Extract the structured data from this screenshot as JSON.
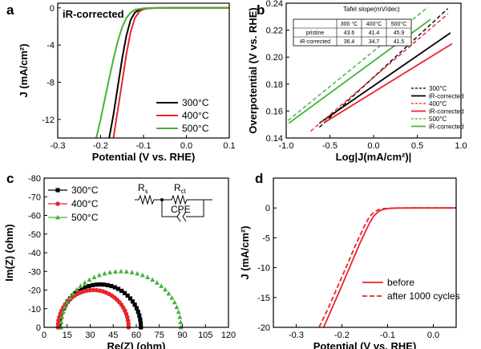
{
  "chart_data": [
    {
      "panel": "a",
      "type": "line",
      "annotation": "iR-corrected",
      "xlabel": "Potential (V vs. RHE)",
      "ylabel": "J (mA/cm²)",
      "xlim": [
        -0.3,
        0.1
      ],
      "ylim": [
        -14,
        0.5
      ],
      "xticks": [
        -0.3,
        -0.2,
        -0.1,
        0.0,
        0.1
      ],
      "xtick_labels": [
        "-0.3",
        "-0.2",
        "-0.1",
        "0.0",
        "0.1"
      ],
      "yticks": [
        0,
        -4,
        -8,
        -12
      ],
      "ytick_labels": [
        "0",
        "-4",
        "-8",
        "-12"
      ],
      "legend_position": "bottom-right",
      "series": [
        {
          "name": "300°C",
          "color": "#000000",
          "x": [
            -0.18,
            -0.17,
            -0.16,
            -0.15,
            -0.14,
            -0.13,
            -0.12,
            -0.11,
            -0.1,
            -0.08,
            -0.05,
            0.0,
            0.1
          ],
          "y": [
            -14,
            -11.5,
            -8.5,
            -5.5,
            -3.0,
            -1.3,
            -0.5,
            -0.2,
            -0.08,
            -0.02,
            0,
            0,
            0
          ]
        },
        {
          "name": "400°C",
          "color": "#e8252a",
          "x": [
            -0.17,
            -0.16,
            -0.15,
            -0.14,
            -0.13,
            -0.12,
            -0.11,
            -0.1,
            -0.09,
            -0.07,
            -0.04,
            0.0,
            0.1
          ],
          "y": [
            -14,
            -11.0,
            -8.0,
            -5.0,
            -2.6,
            -1.1,
            -0.4,
            -0.15,
            -0.06,
            -0.02,
            0,
            0,
            0
          ]
        },
        {
          "name": "500°C",
          "color": "#44b23a",
          "x": [
            -0.21,
            -0.2,
            -0.19,
            -0.18,
            -0.17,
            -0.16,
            -0.15,
            -0.14,
            -0.13,
            -0.12,
            -0.1,
            -0.08,
            -0.05,
            0.0,
            0.1
          ],
          "y": [
            -14,
            -12.0,
            -9.8,
            -7.6,
            -5.5,
            -3.6,
            -2.1,
            -1.1,
            -0.5,
            -0.2,
            -0.05,
            -0.01,
            0,
            0,
            0
          ]
        }
      ]
    },
    {
      "panel": "b",
      "type": "line",
      "xlabel": "Log|J(mA/cm²)|",
      "ylabel": "Overpotential (V vs. RHE)",
      "xlim": [
        -1.0,
        1.0
      ],
      "ylim": [
        0.14,
        0.24
      ],
      "xticks": [
        -1.0,
        -0.5,
        0.0,
        0.5,
        1.0
      ],
      "xtick_labels": [
        "-1.0",
        "-0.5",
        "0.0",
        "0.5",
        "1.0"
      ],
      "yticks": [
        0.14,
        0.16,
        0.18,
        0.2,
        0.22,
        0.24
      ],
      "ytick_labels": [
        "0.14",
        "0.16",
        "0.18",
        "0.20",
        "0.22",
        "0.24"
      ],
      "legend_position": "bottom-right",
      "table": {
        "title": "Tafel slope(mV/dec)",
        "columns": [
          "",
          "300 °C",
          "400°C",
          "500°C"
        ],
        "rows": [
          [
            "pristine",
            "43.6",
            "41.4",
            "45.9"
          ],
          [
            "iR-corrected",
            "36.4",
            "34.7",
            "41.5"
          ]
        ]
      },
      "series": [
        {
          "name": "300°C",
          "color": "#000000",
          "style": "dashed",
          "x": [
            -0.62,
            0.85
          ],
          "y": [
            0.148,
            0.236
          ]
        },
        {
          "name": "iR-corrected",
          "color": "#000000",
          "style": "solid",
          "x": [
            -0.62,
            0.88
          ],
          "y": [
            0.151,
            0.218
          ]
        },
        {
          "name": "400°C",
          "color": "#e8252a",
          "style": "dashed",
          "x": [
            -0.72,
            0.85
          ],
          "y": [
            0.145,
            0.232
          ]
        },
        {
          "name": "iR-corrected",
          "color": "#e8252a",
          "style": "solid",
          "x": [
            -0.55,
            0.9
          ],
          "y": [
            0.152,
            0.21
          ]
        },
        {
          "name": "500°C",
          "color": "#44b23a",
          "style": "dashed",
          "x": [
            -0.98,
            0.62
          ],
          "y": [
            0.153,
            0.237
          ]
        },
        {
          "name": "iR-corrected",
          "color": "#44b23a",
          "style": "solid",
          "x": [
            -0.97,
            0.65
          ],
          "y": [
            0.151,
            0.228
          ]
        }
      ]
    },
    {
      "panel": "c",
      "type": "scatter",
      "xlabel": "Re(Z) (ohm)",
      "ylabel": "Im(Z) (ohm)",
      "xlim": [
        0,
        120
      ],
      "ylim": [
        0,
        -80
      ],
      "xticks": [
        0,
        15,
        30,
        45,
        60,
        75,
        90,
        105,
        120
      ],
      "xtick_labels": [
        "0",
        "15",
        "30",
        "45",
        "60",
        "75",
        "90",
        "105",
        "120"
      ],
      "yticks": [
        0,
        -10,
        -20,
        -30,
        -40,
        -50,
        -60,
        -70,
        -80
      ],
      "ytick_labels": [
        "0",
        "-10",
        "-20",
        "-30",
        "-40",
        "-50",
        "-60",
        "-70",
        "-80"
      ],
      "legend_position": "top-left",
      "circuit_labels": [
        "Rs",
        "Rct",
        "CPE"
      ],
      "series": [
        {
          "name": "300°C",
          "color": "#000000",
          "marker": "square",
          "r_start": 10,
          "r_end": 63,
          "peak": 23
        },
        {
          "name": "400°C",
          "color": "#e8252a",
          "marker": "circle",
          "r_start": 9,
          "r_end": 55,
          "peak": 20
        },
        {
          "name": "500°C",
          "color": "#44b23a",
          "marker": "triangle",
          "r_start": 11,
          "r_end": 89,
          "peak": 30
        }
      ]
    },
    {
      "panel": "d",
      "type": "line",
      "xlabel": "Potential (V vs. RHE)",
      "ylabel": "J (mA/cm²)",
      "xlim": [
        -0.35,
        0.05
      ],
      "ylim": [
        -20,
        5
      ],
      "xticks": [
        -0.3,
        -0.2,
        -0.1,
        0.0
      ],
      "xtick_labels": [
        "-0.3",
        "-0.2",
        "-0.1",
        "0.0"
      ],
      "yticks": [
        0,
        -5,
        -10,
        -15,
        -20
      ],
      "ytick_labels": [
        "0",
        "-5",
        "-10",
        "-15",
        "-20"
      ],
      "legend_position": "bottom-right",
      "series": [
        {
          "name": "before",
          "color": "#e8252a",
          "style": "solid",
          "x": [
            -0.24,
            -0.22,
            -0.2,
            -0.18,
            -0.16,
            -0.14,
            -0.13,
            -0.12,
            -0.11,
            -0.1,
            -0.08,
            -0.05,
            0.0,
            0.05
          ],
          "y": [
            -20,
            -16.5,
            -13.0,
            -9.4,
            -5.8,
            -2.6,
            -1.3,
            -0.6,
            -0.25,
            -0.1,
            -0.02,
            0,
            0,
            0
          ]
        },
        {
          "name": "after 1000 cycles",
          "color": "#e8252a",
          "style": "dashed",
          "x": [
            -0.25,
            -0.23,
            -0.21,
            -0.19,
            -0.17,
            -0.15,
            -0.14,
            -0.13,
            -0.12,
            -0.11,
            -0.09,
            -0.06,
            0.0,
            0.05
          ],
          "y": [
            -20,
            -16.8,
            -13.3,
            -9.8,
            -6.2,
            -2.9,
            -1.5,
            -0.7,
            -0.3,
            -0.12,
            -0.03,
            0,
            0,
            0
          ]
        }
      ]
    }
  ]
}
